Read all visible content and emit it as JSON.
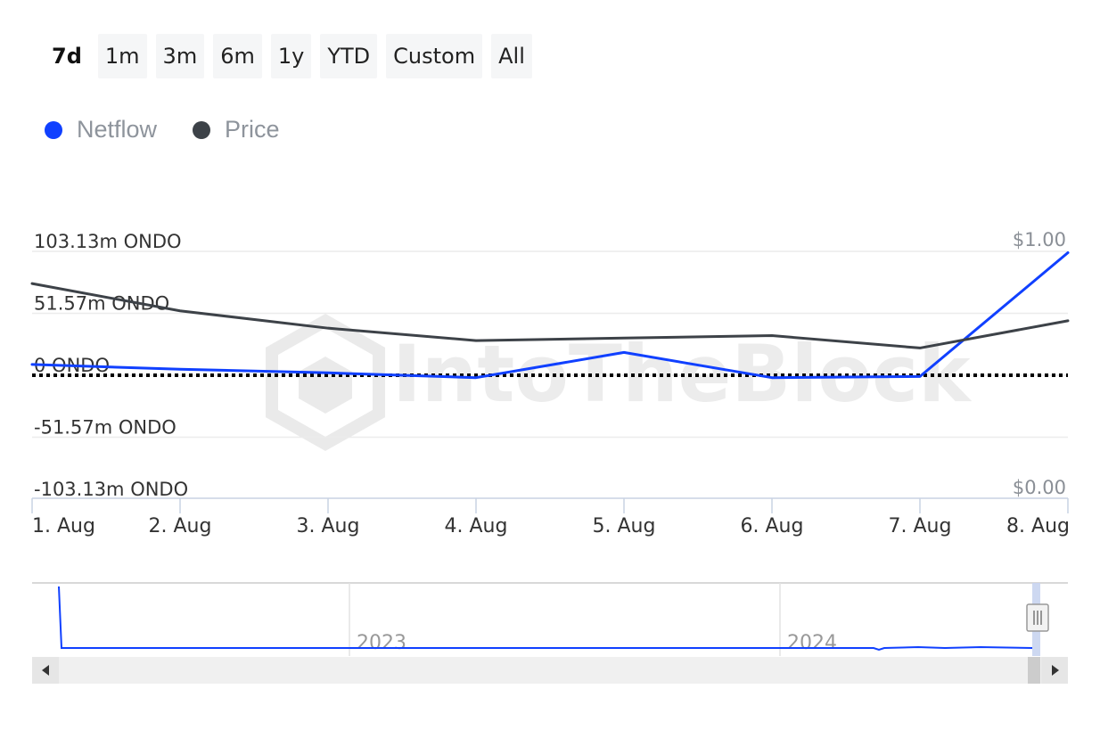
{
  "range_buttons": [
    {
      "label": "7d",
      "active": true
    },
    {
      "label": "1m",
      "active": false
    },
    {
      "label": "3m",
      "active": false
    },
    {
      "label": "6m",
      "active": false
    },
    {
      "label": "1y",
      "active": false
    },
    {
      "label": "YTD",
      "active": false
    },
    {
      "label": "Custom",
      "active": false
    },
    {
      "label": "All",
      "active": false
    }
  ],
  "legend": [
    {
      "label": "Netflow",
      "color": "#1040ff"
    },
    {
      "label": "Price",
      "color": "#3d4248"
    }
  ],
  "watermark": "IntoTheBlock",
  "chart_data": {
    "type": "line",
    "x": [
      "1. Aug",
      "2. Aug",
      "3. Aug",
      "4. Aug",
      "5. Aug",
      "6. Aug",
      "7. Aug",
      "8. Aug"
    ],
    "left_axis": {
      "ticks": [
        103.13,
        51.57,
        0,
        -51.57,
        -103.13
      ],
      "tick_labels": [
        "103.13m ONDO",
        "51.57m ONDO",
        "0 ONDO",
        "-51.57m ONDO",
        "-103.13m ONDO"
      ],
      "ylim": [
        -103.13,
        103.13
      ]
    },
    "right_axis": {
      "tick_labels": [
        "$1.00",
        "$0.00"
      ],
      "ylim": [
        0,
        1
      ]
    },
    "series": [
      {
        "name": "Netflow",
        "axis": "left",
        "color": "#1040ff",
        "values": [
          9,
          5,
          2,
          -2,
          19,
          -2,
          -1,
          102
        ]
      },
      {
        "name": "Price",
        "axis": "right",
        "color": "#3d4248",
        "values": [
          0.87,
          0.76,
          0.69,
          0.64,
          0.65,
          0.66,
          0.61,
          0.72
        ]
      }
    ],
    "zero_line": {
      "style": "dotted",
      "color": "#000000"
    },
    "grid": true
  },
  "navigator": {
    "year_labels": [
      "2023",
      "2024"
    ]
  }
}
